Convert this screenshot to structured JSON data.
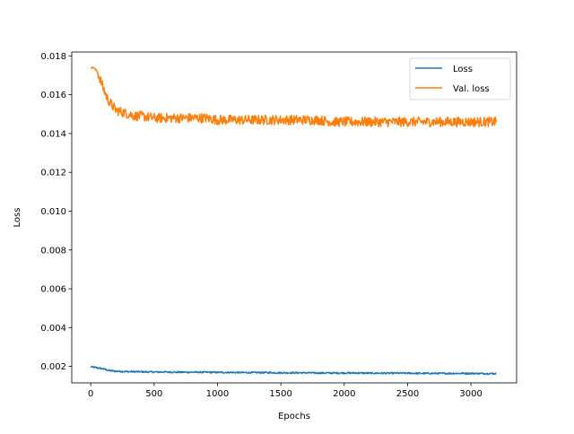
{
  "chart_data": {
    "type": "line",
    "title": "",
    "xlabel": "Epochs",
    "ylabel": "Loss",
    "xlim": [
      -150,
      3360
    ],
    "ylim": [
      0.00115,
      0.0182
    ],
    "xticks": [
      0,
      500,
      1000,
      1500,
      2000,
      2500,
      3000
    ],
    "xtick_labels": [
      "0",
      "500",
      "1000",
      "1500",
      "2000",
      "2500",
      "3000"
    ],
    "yticks": [
      0.002,
      0.004,
      0.006,
      0.008,
      0.01,
      0.012,
      0.014,
      0.016,
      0.018
    ],
    "ytick_labels": [
      "0.002",
      "0.004",
      "0.006",
      "0.008",
      "0.010",
      "0.012",
      "0.014",
      "0.016",
      "0.018"
    ],
    "grid": false,
    "legend_position": "top-right",
    "series": [
      {
        "name": "Loss",
        "color": "#1f77b4",
        "x": [
          0,
          50,
          100,
          150,
          200,
          300,
          400,
          500,
          600,
          700,
          800,
          900,
          1000,
          1100,
          1200,
          1300,
          1400,
          1500,
          1600,
          1700,
          1800,
          1900,
          2000,
          2100,
          2200,
          2300,
          2400,
          2500,
          2600,
          2700,
          2800,
          2900,
          3000,
          3100,
          3200
        ],
        "y": [
          0.00198,
          0.00193,
          0.00187,
          0.00178,
          0.00175,
          0.00173,
          0.00172,
          0.00171,
          0.00171,
          0.0017,
          0.0017,
          0.0017,
          0.00169,
          0.00169,
          0.00168,
          0.00168,
          0.00168,
          0.00167,
          0.00167,
          0.00167,
          0.00166,
          0.00166,
          0.00166,
          0.00166,
          0.00165,
          0.00165,
          0.00165,
          0.00165,
          0.00164,
          0.00164,
          0.00164,
          0.00164,
          0.00164,
          0.00163,
          0.00163
        ]
      },
      {
        "name": "Val. loss",
        "color": "#ff7f0e",
        "x": [
          0,
          25,
          50,
          75,
          100,
          125,
          150,
          175,
          200,
          250,
          300,
          350,
          400,
          500,
          600,
          700,
          800,
          900,
          1000,
          1100,
          1200,
          1300,
          1400,
          1500,
          1600,
          1700,
          1800,
          1900,
          2000,
          2100,
          2200,
          2300,
          2400,
          2500,
          2600,
          2700,
          2800,
          2900,
          3000,
          3100,
          3200
        ],
        "y": [
          0.0174,
          0.0174,
          0.0172,
          0.0168,
          0.0163,
          0.0159,
          0.0156,
          0.0154,
          0.0152,
          0.0151,
          0.015,
          0.0149,
          0.0149,
          0.0148,
          0.0148,
          0.0148,
          0.0148,
          0.0148,
          0.0147,
          0.0147,
          0.0147,
          0.0147,
          0.0147,
          0.0147,
          0.0147,
          0.0147,
          0.0147,
          0.0146,
          0.0146,
          0.0146,
          0.0146,
          0.0146,
          0.0146,
          0.0146,
          0.0146,
          0.0146,
          0.0146,
          0.0146,
          0.0146,
          0.0146,
          0.0146
        ]
      }
    ]
  }
}
